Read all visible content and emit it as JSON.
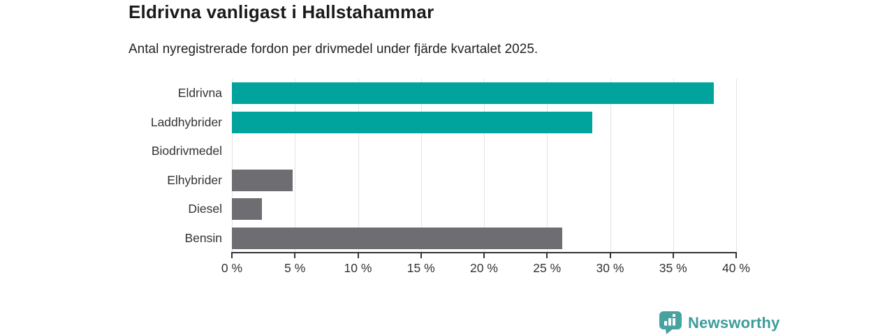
{
  "header": {
    "title": "Eldrivna vanligast i Hallstahammar",
    "subtitle": "Antal nyregistrerade fordon per drivmedel under fjärde kvartalet 2025."
  },
  "chart_data": {
    "type": "bar",
    "orientation": "horizontal",
    "title": "Eldrivna vanligast i Hallstahammar",
    "subtitle": "Antal nyregistrerade fordon per drivmedel under fjärde kvartalet 2025.",
    "categories": [
      "Eldrivna",
      "Laddhybrider",
      "Biodrivmedel",
      "Elhybrider",
      "Diesel",
      "Bensin"
    ],
    "values": [
      38.2,
      28.6,
      0,
      4.8,
      2.4,
      26.2
    ],
    "bar_colors": [
      "#00a49c",
      "#00a49c",
      "#6e6e72",
      "#6e6e72",
      "#6e6e72",
      "#6e6e72"
    ],
    "xlim": [
      0,
      40
    ],
    "x_tick_step": 5,
    "x_tick_labels": [
      "0 %",
      "5 %",
      "10 %",
      "15 %",
      "20 %",
      "25 %",
      "30 %",
      "35 %",
      "40 %"
    ],
    "grid": true,
    "legend": "none",
    "xlabel": "",
    "ylabel": ""
  },
  "colors": {
    "teal": "#00a49c",
    "gray": "#6e6e72",
    "grid": "#e4e4e4",
    "axis": "#333333",
    "text": "#333333",
    "title_text": "#1a1a1a",
    "brand": "#3e9c99"
  },
  "branding": {
    "logo_text": "Newsworthy",
    "logo_icon": "bar-chart-pin-icon"
  }
}
